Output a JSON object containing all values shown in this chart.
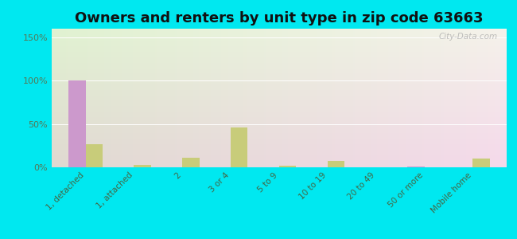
{
  "title": "Owners and renters by unit type in zip code 63663",
  "categories": [
    "1, detached",
    "1, attached",
    "2",
    "3 or 4",
    "5 to 9",
    "10 to 19",
    "20 to 49",
    "50 or more",
    "Mobile home"
  ],
  "owner_values": [
    100,
    0,
    0,
    0,
    0,
    0,
    0,
    1,
    0
  ],
  "renter_values": [
    27,
    3,
    11,
    46,
    2,
    7,
    0,
    0,
    10
  ],
  "owner_color": "#cc99cc",
  "renter_color": "#c8cc7a",
  "ylim": [
    0,
    160
  ],
  "yticks": [
    0,
    50,
    100,
    150
  ],
  "ytick_labels": [
    "0%",
    "50%",
    "100%",
    "150%"
  ],
  "outer_bg": "#00e8f0",
  "bar_width": 0.35,
  "title_fontsize": 13,
  "watermark": "City-Data.com"
}
